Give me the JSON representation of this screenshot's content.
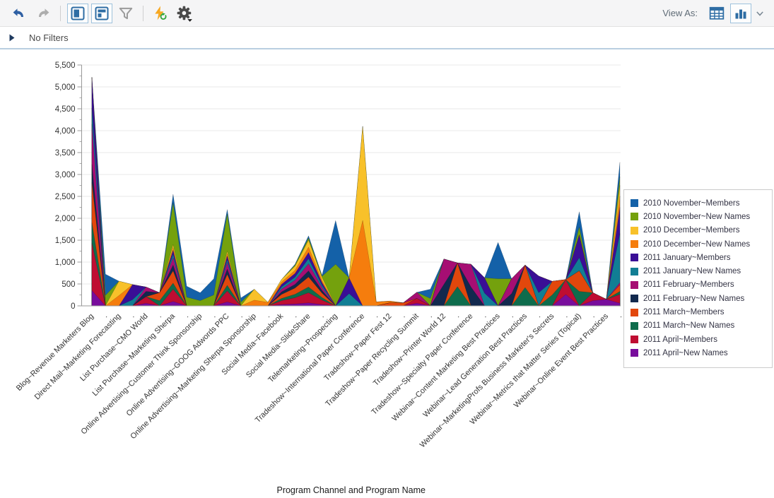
{
  "toolbar": {
    "view_as_label": "View As:",
    "buttons": [
      "undo",
      "redo",
      "layout-left-panel",
      "layout-top-panel",
      "filter",
      "refresh-bolt",
      "settings"
    ],
    "view_as_options": [
      "table-view",
      "chart-view"
    ]
  },
  "filters_bar": {
    "label": "No Filters"
  },
  "chart_data": {
    "type": "area",
    "stacked": true,
    "title": "",
    "xlabel": "Program Channel and Program Name",
    "ylabel": "",
    "ylim": [
      0,
      5500
    ],
    "ytick_step": 500,
    "grid": true,
    "legend_position": "right",
    "categories": [
      "Blog~Revenue Marketers Blog",
      ".",
      "Direct Mail~Marketing Forecasting",
      ".",
      "List Purchase~CMO World",
      ".",
      "List Purchase~Marketing Sherpa",
      ".",
      "Online Advertising~Customer Think Sponsorship",
      ".",
      "Online Advertising~GOOG Adwords PPC",
      ".",
      "Online Advertising~Marketing Sherpa Sponsorship",
      ".",
      "Social Media~Facebook",
      ".",
      "Social Media~SlideShare",
      ".",
      "Telemarketing~Prospecting",
      ".",
      "Tradeshow~International Paper Conference",
      ".",
      "Tradeshow~Paper Fest 12",
      ".",
      "Tradeshow~Paper Recycling Summit",
      ".",
      "Tradeshow~Printer World 12",
      ".",
      "Tradeshow~Specialty Paper Conference",
      ".",
      "Webinar~Content Marketing Best Practices",
      ".",
      "Webinar~Lead Generation Best Practices",
      ".",
      "Webinar~MarketingProfs Business Marketer's Secrets",
      ".",
      "Webinar~Metrics that Matter Series (Topical)",
      ".",
      "Webinar~Online Event Best Practices",
      "."
    ],
    "series": [
      {
        "name": "2010 November~Members",
        "color": "#1461A8",
        "values": [
          0,
          485,
          0,
          0,
          0,
          0,
          200,
          250,
          180,
          370,
          100,
          100,
          0,
          0,
          0,
          20,
          50,
          25,
          1000,
          0,
          0,
          0,
          0,
          0,
          0,
          210,
          0,
          0,
          0,
          0,
          830,
          0,
          0,
          0,
          0,
          0,
          350,
          0,
          0,
          330
        ]
      },
      {
        "name": "2010 November~New Names",
        "color": "#74A10D",
        "values": [
          0,
          240,
          0,
          0,
          0,
          0,
          950,
          200,
          120,
          250,
          850,
          80,
          0,
          0,
          0,
          25,
          50,
          25,
          950,
          0,
          0,
          0,
          0,
          0,
          0,
          170,
          0,
          0,
          0,
          0,
          620,
          0,
          0,
          0,
          0,
          0,
          180,
          0,
          0,
          200
        ]
      },
      {
        "name": "2010 December~Members",
        "color": "#F8C12A",
        "values": [
          0,
          0,
          330,
          0,
          0,
          0,
          70,
          0,
          0,
          0,
          60,
          0,
          250,
          0,
          60,
          95,
          160,
          70,
          0,
          0,
          2150,
          0,
          0,
          0,
          0,
          0,
          0,
          0,
          0,
          0,
          0,
          0,
          0,
          0,
          0,
          0,
          0,
          0,
          0,
          250
        ]
      },
      {
        "name": "2010 December~New Names",
        "color": "#F57D0D",
        "values": [
          0,
          0,
          235,
          0,
          0,
          0,
          60,
          0,
          0,
          0,
          50,
          0,
          130,
          80,
          50,
          70,
          120,
          50,
          0,
          0,
          1950,
          90,
          40,
          0,
          0,
          0,
          0,
          0,
          0,
          0,
          0,
          0,
          0,
          0,
          0,
          0,
          0,
          0,
          0,
          250
        ]
      },
      {
        "name": "2011 January~Members",
        "color": "#3A0E96",
        "values": [
          700,
          0,
          0,
          345,
          0,
          0,
          90,
          0,
          0,
          0,
          80,
          0,
          0,
          0,
          60,
          85,
          140,
          60,
          0,
          360,
          0,
          0,
          0,
          0,
          0,
          0,
          0,
          0,
          0,
          350,
          0,
          0,
          0,
          380,
          0,
          0,
          520,
          0,
          0,
          600
        ]
      },
      {
        "name": "2011 January~New Names",
        "color": "#117E94",
        "values": [
          370,
          0,
          0,
          140,
          0,
          0,
          80,
          0,
          0,
          0,
          70,
          0,
          0,
          0,
          50,
          70,
          120,
          50,
          0,
          280,
          0,
          0,
          0,
          0,
          0,
          0,
          0,
          0,
          0,
          290,
          0,
          0,
          0,
          300,
          0,
          0,
          300,
          0,
          0,
          1120
        ]
      },
      {
        "name": "2011 February~Members",
        "color": "#A60E73",
        "values": [
          920,
          0,
          0,
          0,
          100,
          0,
          170,
          0,
          0,
          0,
          150,
          0,
          0,
          0,
          60,
          95,
          160,
          70,
          0,
          0,
          0,
          0,
          0,
          0,
          140,
          0,
          580,
          0,
          520,
          0,
          0,
          340,
          0,
          0,
          0,
          0,
          0,
          0,
          0,
          50
        ]
      },
      {
        "name": "2011 February~New Names",
        "color": "#12294E",
        "values": [
          410,
          0,
          0,
          0,
          120,
          0,
          130,
          0,
          0,
          0,
          120,
          0,
          0,
          0,
          60,
          85,
          140,
          60,
          0,
          0,
          0,
          0,
          0,
          0,
          0,
          0,
          490,
          0,
          430,
          0,
          0,
          280,
          0,
          0,
          0,
          0,
          0,
          0,
          0,
          0
        ]
      },
      {
        "name": "2011 March~Members",
        "color": "#E2470C",
        "values": [
          920,
          0,
          0,
          0,
          0,
          180,
          280,
          0,
          0,
          0,
          250,
          0,
          0,
          0,
          90,
          140,
          230,
          100,
          0,
          0,
          0,
          0,
          70,
          70,
          0,
          0,
          0,
          540,
          0,
          0,
          0,
          0,
          510,
          0,
          310,
          0,
          470,
          0,
          0,
          150
        ]
      },
      {
        "name": "2011 March~New Names",
        "color": "#0E6C4C",
        "values": [
          470,
          0,
          0,
          0,
          0,
          120,
          140,
          0,
          0,
          0,
          130,
          0,
          0,
          0,
          50,
          80,
          130,
          60,
          0,
          0,
          0,
          0,
          0,
          0,
          0,
          0,
          0,
          440,
          0,
          0,
          0,
          0,
          420,
          0,
          250,
          0,
          330,
          0,
          0,
          70
        ]
      },
      {
        "name": "2011 April~Members",
        "color": "#BF0D32",
        "values": [
          1080,
          0,
          0,
          0,
          150,
          0,
          280,
          0,
          0,
          0,
          250,
          0,
          0,
          0,
          90,
          140,
          230,
          100,
          0,
          0,
          0,
          0,
          0,
          0,
          110,
          0,
          0,
          0,
          0,
          0,
          0,
          0,
          0,
          0,
          0,
          340,
          0,
          180,
          0,
          200
        ]
      },
      {
        "name": "2011 April~New Names",
        "color": "#780D9C",
        "values": [
          350,
          0,
          0,
          0,
          60,
          0,
          100,
          0,
          0,
          0,
          90,
          0,
          0,
          0,
          30,
          45,
          70,
          30,
          0,
          0,
          0,
          0,
          0,
          0,
          60,
          0,
          0,
          0,
          0,
          0,
          0,
          0,
          0,
          0,
          0,
          260,
          0,
          120,
          150,
          60
        ]
      }
    ]
  }
}
